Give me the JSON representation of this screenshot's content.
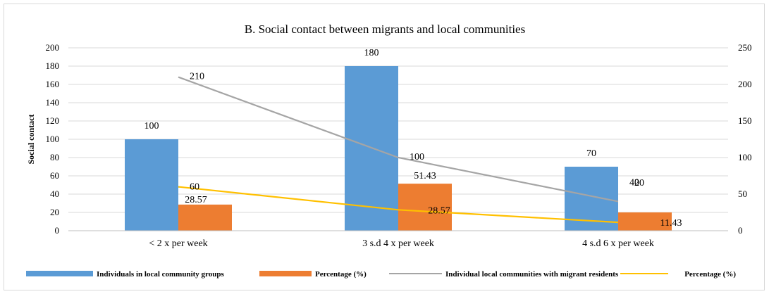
{
  "chart_data": {
    "type": "bar",
    "title": "B. Social contact between migrants and local communities",
    "ylabel": "Social contact",
    "xlabel": "",
    "categories": [
      "< 2 x per week",
      "3 s.d 4 x per week",
      "4 s.d 6 x per week"
    ],
    "ylim": [
      0,
      200
    ],
    "y_ticks": [
      "0",
      "20",
      "40",
      "60",
      "80",
      "100",
      "120",
      "140",
      "160",
      "180",
      "200"
    ],
    "y2lim": [
      0,
      250
    ],
    "y2_ticks": [
      "0",
      "50",
      "100",
      "150",
      "200",
      "250"
    ],
    "grid": true,
    "legend_position": "bottom",
    "series": [
      {
        "name": "Individuals in local community groups",
        "kind": "bar",
        "axis": "left",
        "color": "#5b9bd5",
        "values": [
          100,
          180,
          70
        ],
        "labels": [
          "100",
          "180",
          "70"
        ]
      },
      {
        "name": "Percentage (%)",
        "kind": "bar",
        "axis": "left",
        "color": "#ed7d31",
        "values": [
          28.57,
          51.43,
          20
        ],
        "labels": [
          "28.57",
          "51.43",
          "20"
        ]
      },
      {
        "name": "Individual local communities with migrant residents",
        "kind": "line",
        "axis": "right",
        "color": "#a5a5a5",
        "values": [
          210,
          100,
          40
        ],
        "labels": [
          "210",
          "100",
          "40"
        ]
      },
      {
        "name": "Percentage (%)",
        "kind": "line",
        "axis": "right",
        "color": "#ffc000",
        "values": [
          60,
          28.57,
          11.43
        ],
        "labels": [
          "60",
          "28.57",
          "11.43"
        ]
      }
    ]
  }
}
